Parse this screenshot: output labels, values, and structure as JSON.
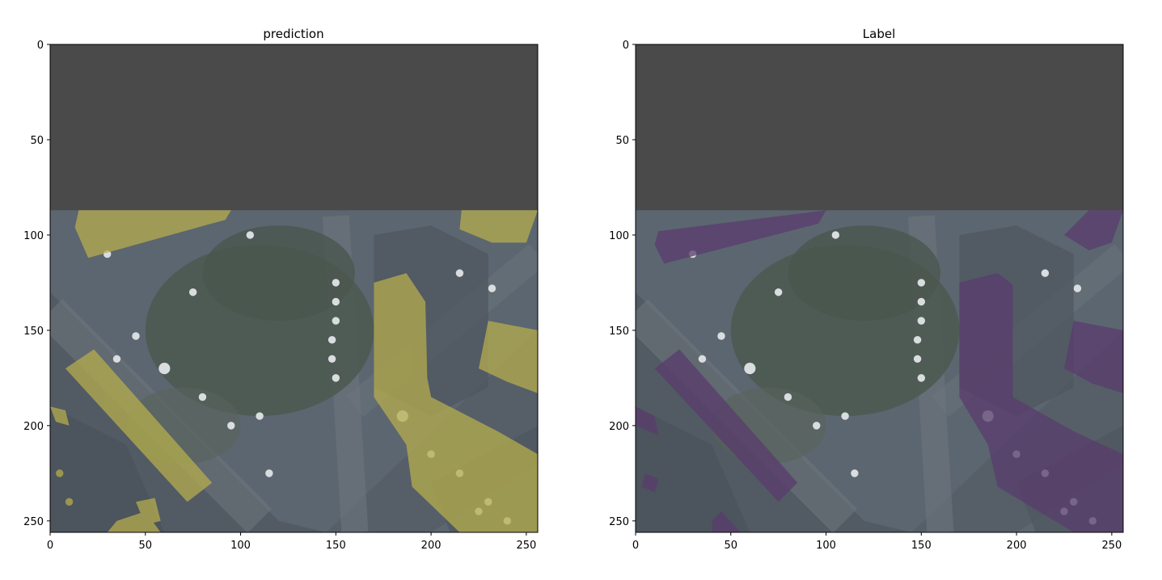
{
  "panels": [
    {
      "id": "prediction",
      "title": "prediction",
      "overlay_color": "#b5ad4e",
      "x_ticks": [
        "0",
        "50",
        "100",
        "150",
        "200",
        "250"
      ],
      "y_ticks": [
        "0",
        "50",
        "100",
        "150",
        "200",
        "250"
      ],
      "x_range": [
        0,
        256
      ],
      "y_range": [
        0,
        256
      ]
    },
    {
      "id": "label",
      "title": "Label",
      "overlay_color": "#5a3c6e",
      "x_ticks": [
        "0",
        "50",
        "100",
        "150",
        "200",
        "250"
      ],
      "y_ticks": [
        "0",
        "50",
        "100",
        "150",
        "200",
        "250"
      ],
      "x_range": [
        0,
        256
      ],
      "y_range": [
        0,
        256
      ]
    }
  ],
  "image": {
    "masked_region_color": "#4a4a4a",
    "masked_rows": [
      0,
      87
    ]
  }
}
